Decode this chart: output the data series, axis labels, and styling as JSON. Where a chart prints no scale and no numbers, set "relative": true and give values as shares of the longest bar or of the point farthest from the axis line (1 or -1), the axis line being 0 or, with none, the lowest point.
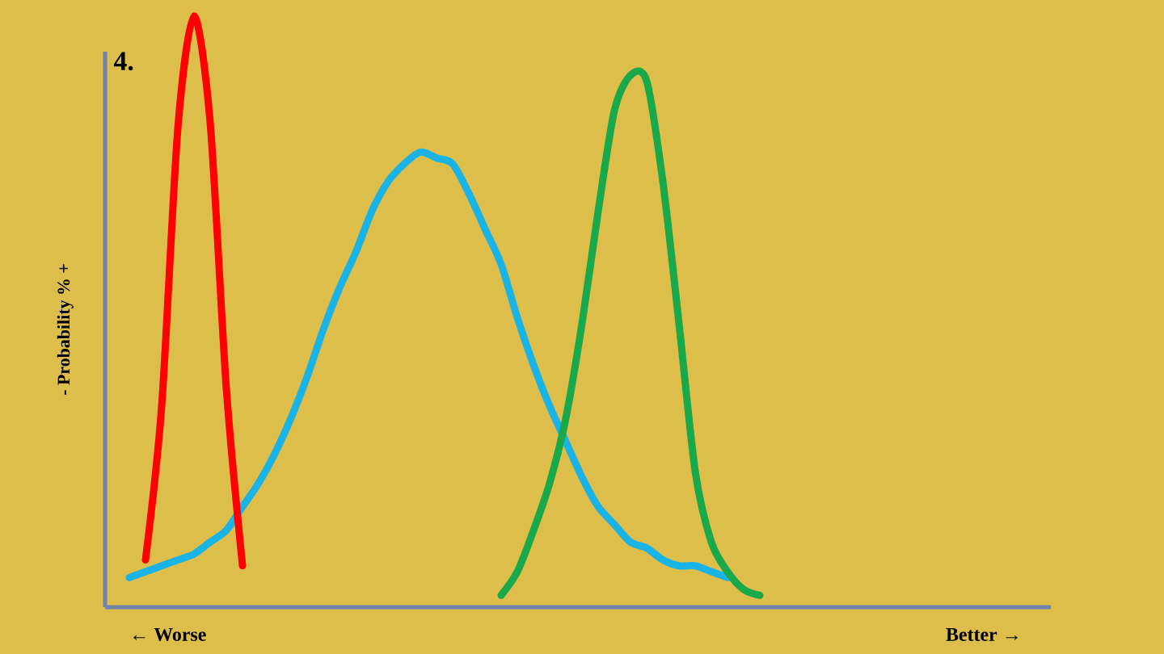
{
  "chart_data": {
    "type": "line",
    "relative": true,
    "ylabel": "- Probability % +",
    "annotations": [
      "4.",
      "← Worse",
      "Better →"
    ],
    "categories": [
      null,
      null,
      null,
      null,
      null,
      null,
      null,
      null,
      null,
      null,
      null,
      null,
      null,
      null,
      null,
      null,
      null,
      null,
      null,
      null,
      null,
      null,
      null,
      null,
      null,
      null,
      null,
      null,
      null,
      null,
      null,
      null,
      null,
      null,
      null,
      null,
      null,
      null,
      null,
      null
    ],
    "series": [
      {
        "color": "#19b3e6",
        "values": [
          0.05,
          0.06,
          0.07,
          0.08,
          0.09,
          0.11,
          0.13,
          0.17,
          0.21,
          0.26,
          0.32,
          0.39,
          0.47,
          0.54,
          0.6,
          0.67,
          0.72,
          0.75,
          0.77,
          0.76,
          0.75,
          0.7,
          0.64,
          0.58,
          0.49,
          0.41,
          0.34,
          0.28,
          0.22,
          0.17,
          0.14,
          0.11,
          0.1,
          0.08,
          0.07,
          0.07,
          0.06,
          0.05,
          null,
          null
        ]
      },
      {
        "color": "#ff0000",
        "values": [
          null,
          0.08,
          0.34,
          0.81,
          1.0,
          0.82,
          0.37,
          0.07,
          null,
          null,
          null,
          null,
          null,
          null,
          null,
          null,
          null,
          null,
          null,
          null,
          null,
          null,
          null,
          null,
          null,
          null,
          null,
          null,
          null,
          null,
          null,
          null,
          null,
          null,
          null,
          null,
          null,
          null,
          null,
          null
        ]
      },
      {
        "color": "#19a84a",
        "values": [
          null,
          null,
          null,
          null,
          null,
          null,
          null,
          null,
          null,
          null,
          null,
          null,
          null,
          null,
          null,
          null,
          null,
          null,
          null,
          null,
          null,
          null,
          null,
          0.02,
          0.06,
          0.13,
          0.21,
          0.32,
          0.48,
          0.67,
          0.84,
          0.9,
          0.89,
          0.72,
          0.48,
          0.23,
          0.11,
          0.06,
          0.03,
          0.02
        ]
      }
    ],
    "line_style": "solid",
    "marker": "none"
  }
}
